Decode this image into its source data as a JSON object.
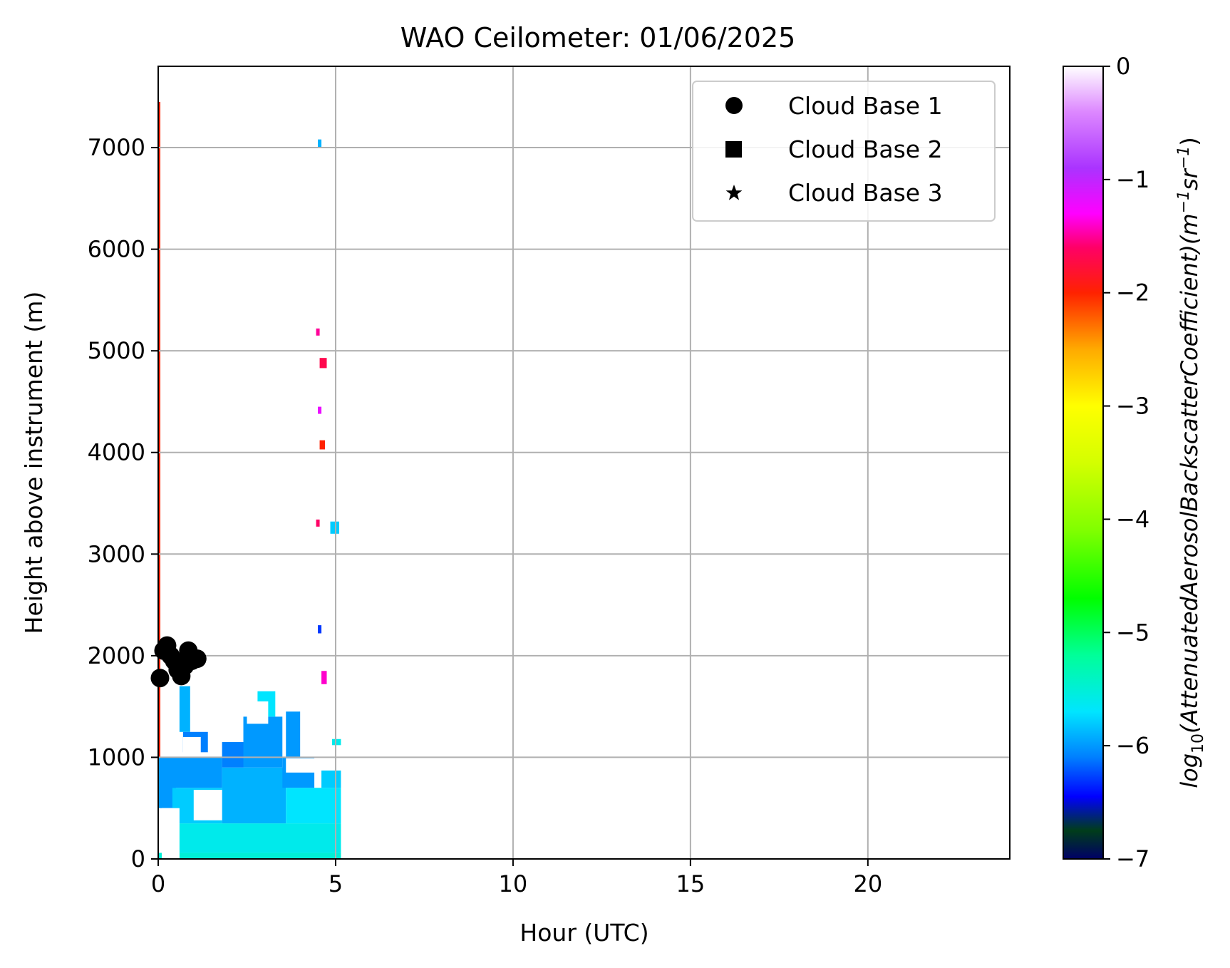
{
  "chart_data": {
    "type": "heatmap",
    "title": "WAO Ceilometer: 01/06/2025",
    "xlabel": "Hour (UTC)",
    "ylabel": "Height above instrument (m)",
    "xlim": [
      0,
      24
    ],
    "ylim": [
      0,
      7800
    ],
    "x_ticks": [
      0,
      5,
      10,
      15,
      20
    ],
    "y_ticks": [
      0,
      1000,
      2000,
      3000,
      4000,
      5000,
      6000,
      7000
    ],
    "grid": true,
    "legend": {
      "placement": "top-right",
      "entries": [
        {
          "label": "Cloud Base 1",
          "marker": "circle"
        },
        {
          "label": "Cloud Base 2",
          "marker": "square"
        },
        {
          "label": "Cloud Base 3",
          "marker": "star"
        }
      ]
    },
    "colorbar": {
      "label": "log10(AttenuatedAerosolBackscatterCoefficient)(m−1sr−1)",
      "label_base": "log",
      "label_sub": "10",
      "label_main": "(AttenuatedAerosolBackscatterCoefficient)(m",
      "label_sup1": "−1",
      "label_mid": "sr",
      "label_sup2": "−1",
      "label_end": ")",
      "range": [
        -7,
        0
      ],
      "ticks": [
        "0",
        "−1",
        "−2",
        "−3",
        "−4",
        "−5",
        "−6",
        "−7"
      ],
      "tick_values": [
        0,
        -1,
        -2,
        -3,
        -4,
        -5,
        -6,
        -7
      ],
      "colormap_stops": [
        {
          "value": -7.0,
          "color": "#000066"
        },
        {
          "value": -6.75,
          "color": "#003d1a"
        },
        {
          "value": -6.45,
          "color": "#0000ff"
        },
        {
          "value": -6.1,
          "color": "#0080ff"
        },
        {
          "value": -5.7,
          "color": "#00e5ff"
        },
        {
          "value": -5.2,
          "color": "#00ff99"
        },
        {
          "value": -4.7,
          "color": "#00ff00"
        },
        {
          "value": -4.1,
          "color": "#80ff00"
        },
        {
          "value": -3.5,
          "color": "#d4ff00"
        },
        {
          "value": -3.0,
          "color": "#ffff00"
        },
        {
          "value": -2.5,
          "color": "#ffaa00"
        },
        {
          "value": -2.0,
          "color": "#ff2200"
        },
        {
          "value": -1.6,
          "color": "#ff0066"
        },
        {
          "value": -1.3,
          "color": "#ff00ff"
        },
        {
          "value": -0.9,
          "color": "#aa33ff"
        },
        {
          "value": -0.4,
          "color": "#dd88ff"
        },
        {
          "value": 0.0,
          "color": "#ffffff"
        }
      ]
    },
    "backscatter_regions": [
      {
        "x0": 0.0,
        "x1": 5.15,
        "y0": 0,
        "y1": 60,
        "value": -5.5
      },
      {
        "x0": 0.5,
        "x1": 5.15,
        "y0": 60,
        "y1": 350,
        "value": -5.6
      },
      {
        "x0": 0.0,
        "x1": 0.5,
        "y0": 500,
        "y1": 1000,
        "value": -6.0
      },
      {
        "x0": 0.4,
        "x1": 1.8,
        "y0": 350,
        "y1": 700,
        "value": -5.8
      },
      {
        "x0": 1.8,
        "x1": 3.6,
        "y0": 350,
        "y1": 900,
        "value": -5.9
      },
      {
        "x0": 3.6,
        "x1": 5.15,
        "y0": 350,
        "y1": 700,
        "value": -5.7
      },
      {
        "x0": 0.4,
        "x1": 1.8,
        "y0": 700,
        "y1": 1000,
        "value": -6.0
      },
      {
        "x0": 1.8,
        "x1": 2.4,
        "y0": 900,
        "y1": 1150,
        "value": -6.1
      },
      {
        "x0": 2.4,
        "x1": 3.5,
        "y0": 900,
        "y1": 1400,
        "value": -6.0
      },
      {
        "x0": 3.5,
        "x1": 4.4,
        "y0": 700,
        "y1": 1000,
        "value": -6.0
      },
      {
        "x0": 2.8,
        "x1": 3.3,
        "y0": 1400,
        "y1": 1650,
        "value": -5.7
      },
      {
        "x0": 3.6,
        "x1": 4.0,
        "y0": 1000,
        "y1": 1450,
        "value": -6.0
      },
      {
        "x0": 0.7,
        "x1": 1.4,
        "y0": 1050,
        "y1": 1250,
        "value": -6.1
      },
      {
        "x0": 0.6,
        "x1": 0.9,
        "y0": 1250,
        "y1": 1700,
        "value": -5.9
      },
      {
        "x0": 4.6,
        "x1": 5.15,
        "y0": 700,
        "y1": 870,
        "value": -5.8
      },
      {
        "x0": 4.9,
        "x1": 5.15,
        "y0": 1120,
        "y1": 1180,
        "value": -5.6
      },
      {
        "x0": 4.85,
        "x1": 5.1,
        "y0": 3200,
        "y1": 3320,
        "value": -5.8
      },
      {
        "x0": 0.0,
        "x1": 0.06,
        "y0": 1000,
        "y1": 7450,
        "value": -2.0
      },
      {
        "x0": 4.45,
        "x1": 4.55,
        "y0": 5150,
        "y1": 5220,
        "value": -1.5
      },
      {
        "x0": 4.5,
        "x1": 4.6,
        "y0": 7000,
        "y1": 7080,
        "value": -5.9
      },
      {
        "x0": 4.55,
        "x1": 4.75,
        "y0": 4830,
        "y1": 4930,
        "value": -1.7
      },
      {
        "x0": 4.55,
        "x1": 4.7,
        "y0": 4030,
        "y1": 4120,
        "value": -2.0
      },
      {
        "x0": 4.45,
        "x1": 4.55,
        "y0": 3270,
        "y1": 3340,
        "value": -1.6
      },
      {
        "x0": 4.6,
        "x1": 4.75,
        "y0": 1720,
        "y1": 1850,
        "value": -1.4
      },
      {
        "x0": 4.5,
        "x1": 4.6,
        "y0": 2220,
        "y1": 2300,
        "value": -6.3
      },
      {
        "x0": 4.5,
        "x1": 4.6,
        "y0": 4380,
        "y1": 4450,
        "value": -1.2
      }
    ],
    "clear_gaps": [
      {
        "x0": 0.1,
        "x1": 0.6,
        "y0": 0,
        "y1": 500
      },
      {
        "x0": 1.0,
        "x1": 1.8,
        "y0": 380,
        "y1": 680
      },
      {
        "x0": 0.7,
        "x1": 1.2,
        "y0": 1020,
        "y1": 1200
      },
      {
        "x0": 2.5,
        "x1": 3.1,
        "y0": 1330,
        "y1": 1550
      },
      {
        "x0": 3.6,
        "x1": 4.5,
        "y0": 850,
        "y1": 990
      }
    ],
    "cloud_base_1": {
      "x": [
        0.05,
        0.15,
        0.25,
        0.35,
        0.45,
        0.55,
        0.65,
        0.75,
        0.85,
        0.95,
        1.1
      ],
      "y": [
        1780,
        2050,
        2100,
        2000,
        1950,
        1860,
        1800,
        1900,
        2050,
        1950,
        1970
      ]
    }
  }
}
